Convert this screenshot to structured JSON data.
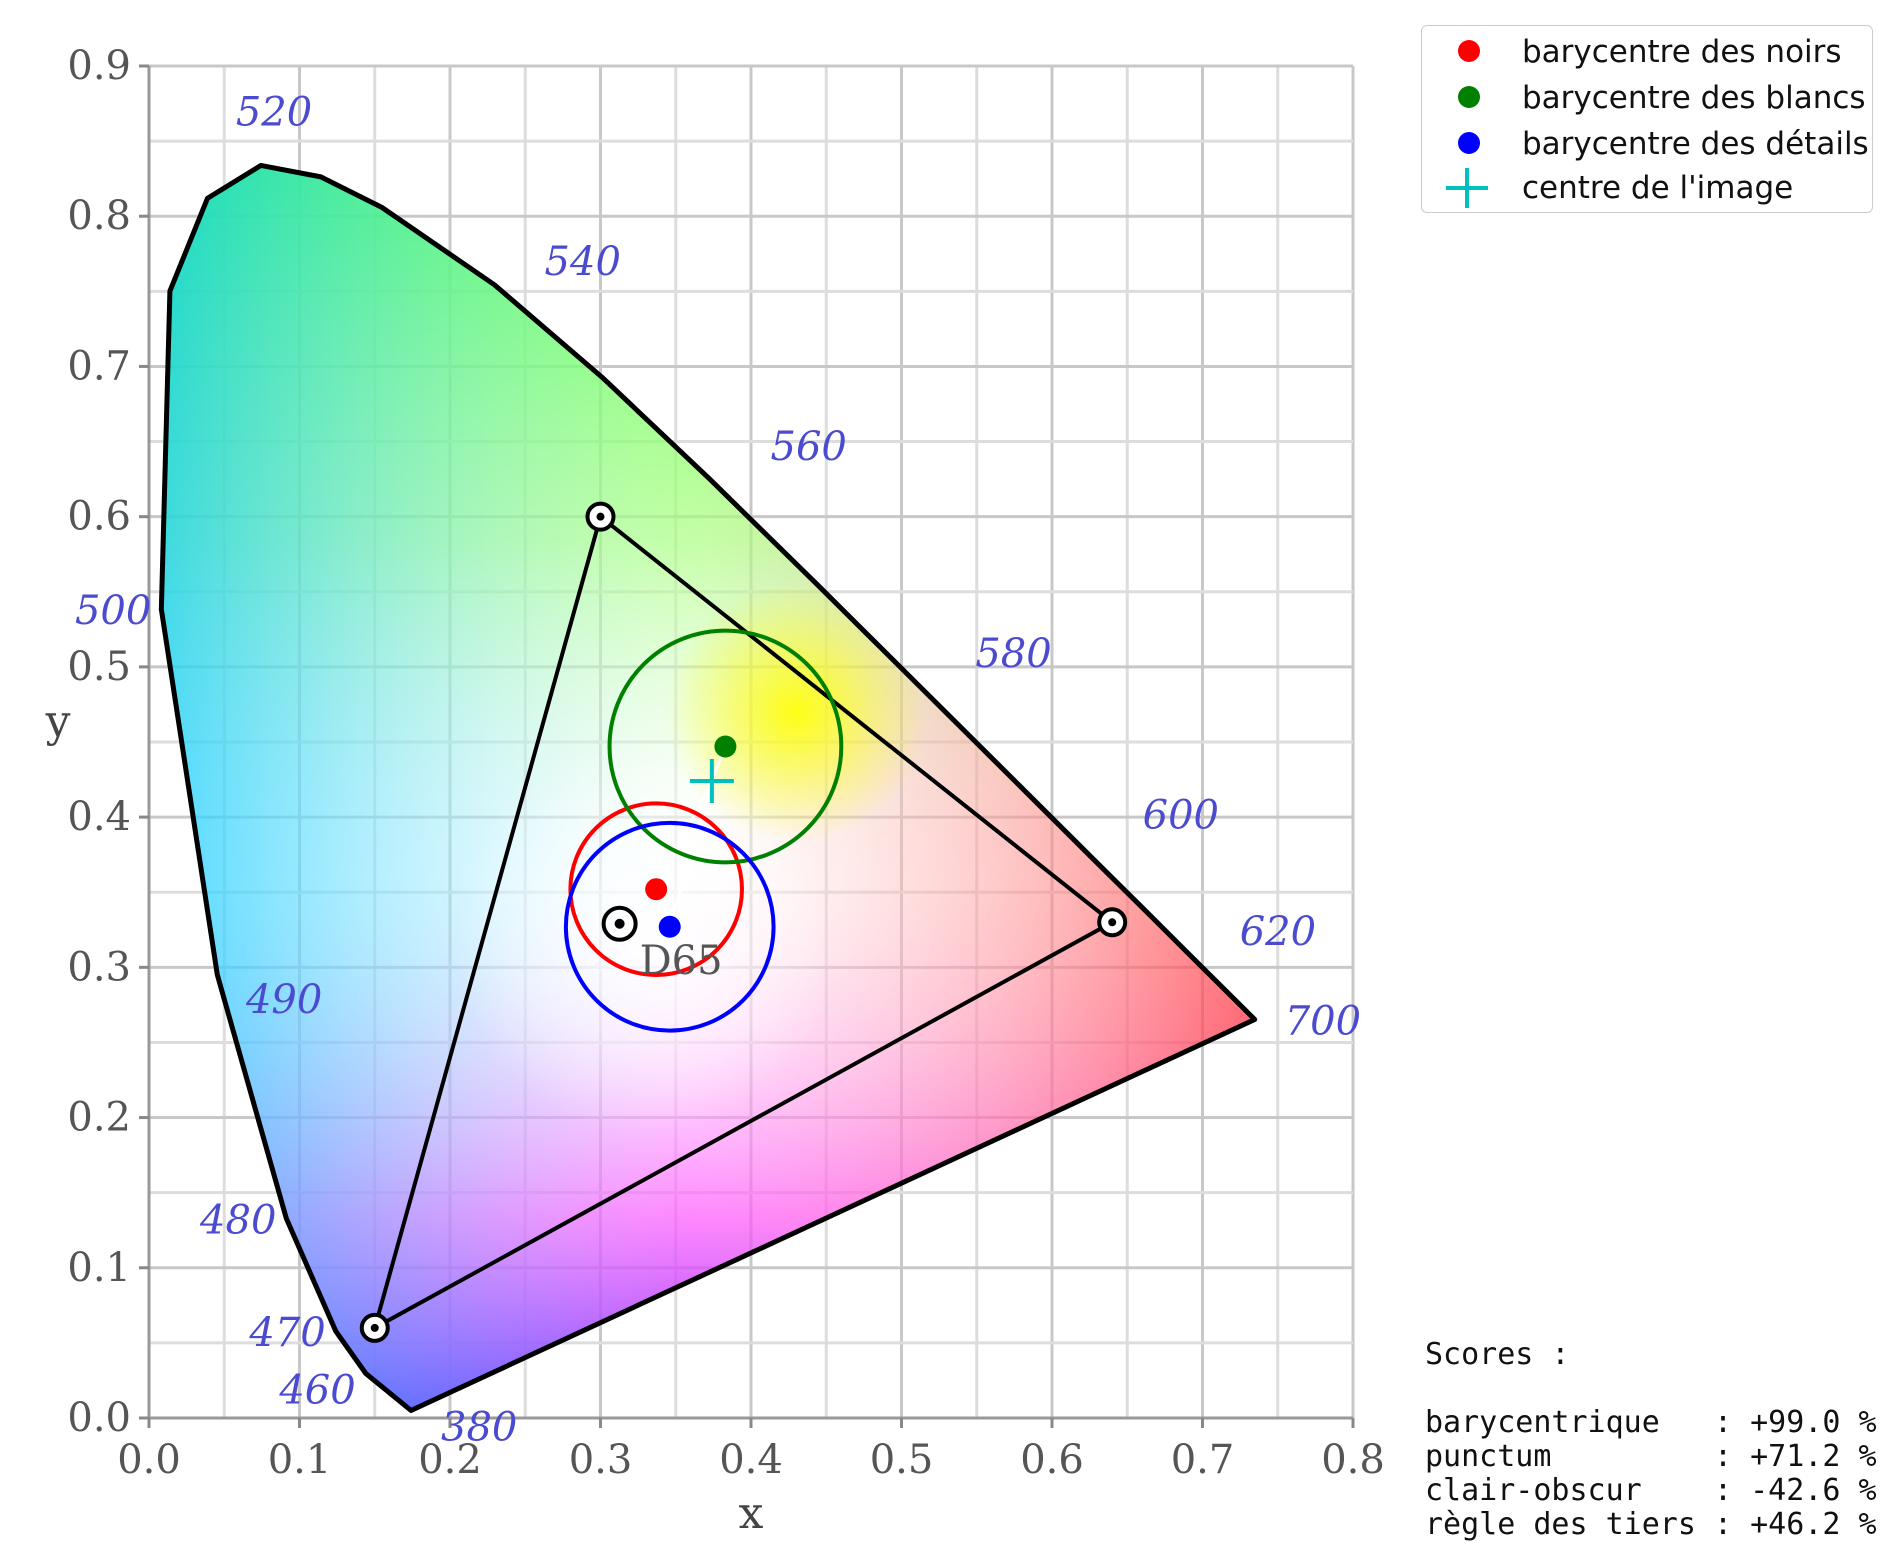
{
  "chart_data": {
    "type": "scatter",
    "title": "",
    "xlabel": "x",
    "ylabel": "y",
    "xlim": [
      0.0,
      0.8
    ],
    "ylim": [
      0.0,
      0.9
    ],
    "x_ticks": [
      "0.0",
      "0.1",
      "0.2",
      "0.3",
      "0.4",
      "0.5",
      "0.6",
      "0.7",
      "0.8"
    ],
    "y_ticks": [
      "0.0",
      "0.1",
      "0.2",
      "0.3",
      "0.4",
      "0.5",
      "0.6",
      "0.7",
      "0.8",
      "0.9"
    ],
    "grid": true,
    "legend_position": "top-right",
    "spectral_locus": [
      [
        0.1741,
        0.005
      ],
      [
        0.144,
        0.0297
      ],
      [
        0.1241,
        0.0578
      ],
      [
        0.0913,
        0.1327
      ],
      [
        0.0454,
        0.295
      ],
      [
        0.0082,
        0.5384
      ],
      [
        0.0139,
        0.7502
      ],
      [
        0.0389,
        0.812
      ],
      [
        0.0743,
        0.8338
      ],
      [
        0.1142,
        0.8262
      ],
      [
        0.1547,
        0.8059
      ],
      [
        0.2296,
        0.7543
      ],
      [
        0.3016,
        0.6923
      ],
      [
        0.3731,
        0.6245
      ],
      [
        0.4441,
        0.5547
      ],
      [
        0.5125,
        0.4866
      ],
      [
        0.5752,
        0.4242
      ],
      [
        0.627,
        0.3725
      ],
      [
        0.6658,
        0.334
      ],
      [
        0.6915,
        0.3083
      ],
      [
        0.7079,
        0.292
      ],
      [
        0.7347,
        0.2653
      ]
    ],
    "wavelength_labels": [
      {
        "text": "520",
        "x": 0.0743,
        "y": 0.8338
      },
      {
        "text": "540",
        "x": 0.2296,
        "y": 0.7543
      },
      {
        "text": "560",
        "x": 0.3731,
        "y": 0.6245
      },
      {
        "text": "580",
        "x": 0.5125,
        "y": 0.4866
      },
      {
        "text": "600",
        "x": 0.627,
        "y": 0.3725
      },
      {
        "text": "620",
        "x": 0.6915,
        "y": 0.3083
      },
      {
        "text": "700",
        "x": 0.7347,
        "y": 0.2653
      },
      {
        "text": "500",
        "x": 0.0082,
        "y": 0.5384
      },
      {
        "text": "490",
        "x": 0.0454,
        "y": 0.295
      },
      {
        "text": "480",
        "x": 0.0913,
        "y": 0.1327
      },
      {
        "text": "470",
        "x": 0.1241,
        "y": 0.0578
      },
      {
        "text": "460",
        "x": 0.144,
        "y": 0.0297
      },
      {
        "text": "380",
        "x": 0.1741,
        "y": 0.005
      }
    ],
    "gamut_triangle": [
      [
        0.64,
        0.33
      ],
      [
        0.3,
        0.6
      ],
      [
        0.15,
        0.06
      ]
    ],
    "white_point": {
      "label": "D65",
      "x": 0.3127,
      "y": 0.329
    },
    "series": [
      {
        "name": "barycentre des noirs",
        "color": "#ff0000",
        "x": 0.337,
        "y": 0.352,
        "circle_radius": 0.057
      },
      {
        "name": "barycentre des blancs",
        "color": "#008000",
        "x": 0.383,
        "y": 0.447,
        "circle_radius": 0.077
      },
      {
        "name": "barycentre des détails",
        "color": "#0000ff",
        "x": 0.346,
        "y": 0.327,
        "circle_radius": 0.069
      },
      {
        "name": "centre de l'image",
        "color": "#00bfbf",
        "x": 0.374,
        "y": 0.424,
        "marker": "plus"
      }
    ]
  },
  "legend": {
    "items": [
      {
        "label": "barycentre des noirs",
        "color": "#ff0000"
      },
      {
        "label": "barycentre des blancs",
        "color": "#008000"
      },
      {
        "label": "barycentre des détails",
        "color": "#0000ff"
      },
      {
        "label": "centre de l'image",
        "color": "#00bfbf"
      }
    ]
  },
  "scores": {
    "heading": "Scores :",
    "lines": [
      "barycentrique   : +99.0 %",
      "punctum         : +71.2 %",
      "clair-obscur    : -42.6 %",
      "règle des tiers : +46.2 %"
    ]
  }
}
